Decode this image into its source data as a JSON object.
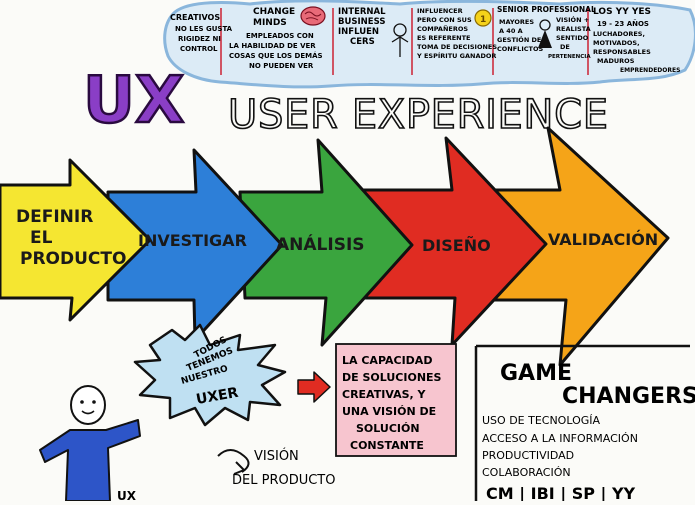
{
  "header_cloud": {
    "segments": [
      {
        "title_lines": [
          "CREATIVOS"
        ],
        "body_lines": [
          "NO LES GUSTA",
          "RIGIDEZ NI",
          "CONTROL"
        ]
      },
      {
        "title_lines": [
          "CHANGE",
          "MINDS"
        ],
        "body_lines": [
          "EMPLEADOS CON",
          "LA HABILIDAD DE VER",
          "COSAS QUE LOS DEMÁS",
          "NO PUEDEN VER"
        ]
      },
      {
        "title_lines": [
          "INTERNAL",
          "BUSINESS",
          "INFLUEN",
          "CERS"
        ],
        "body_lines": [
          "INFLUENCER",
          "PERO CON SUS",
          "COMPAÑEROS",
          "ES REFERENTE",
          "TOMA DE DECISIONES",
          "Y ESPÍRITU GANADOR"
        ]
      },
      {
        "title_lines": [
          "SENIOR PROFESSIONAL"
        ],
        "body_lines": [
          "MAYORES",
          "A 40 A",
          "GESTIÓN DE",
          "CONFLICTOS",
          "VISIÓN +",
          "REALISTA",
          "SENTIDO",
          "DE",
          "PERTENENCIA"
        ]
      },
      {
        "title_lines": [
          "LOS YY YES"
        ],
        "body_lines": [
          "19 - 23 AÑOS",
          "LUCHADORES,",
          "MOTIVADOS,",
          "RESPONSABLES",
          "MADUROS",
          "EMPRENDEDORES"
        ]
      }
    ]
  },
  "title": {
    "logo": "UX",
    "heading": "USER EXPERIENCE"
  },
  "process_arrows": [
    {
      "label": "DEFINIR EL PRODUCTO",
      "lines": [
        "DEFINIR",
        "EL",
        "PRODUCTO"
      ],
      "color": "#f5e631"
    },
    {
      "label": "INVESTIGAR",
      "lines": [
        "INVESTIGAR"
      ],
      "color": "#2d7fd8"
    },
    {
      "label": "ANÁLISIS",
      "lines": [
        "ANÁLISIS"
      ],
      "color": "#3aa53e"
    },
    {
      "label": "DISEÑO",
      "lines": [
        "DISEÑO"
      ],
      "color": "#e02c22"
    },
    {
      "label": "VALIDACIÓN",
      "lines": [
        "VALIDACIÓN"
      ],
      "color": "#f5a418"
    }
  ],
  "bubble": {
    "lines": [
      "TODOS",
      "TENEMOS",
      "NUESTRO"
    ],
    "emphasis": "UXER"
  },
  "capacity_box": {
    "lines": [
      "LA CAPACIDAD",
      "DE SOLUCIONES",
      "CREATIVAS, Y",
      "UNA VISIÓN DE",
      "SOLUCIÓN",
      "CONSTANTE"
    ],
    "color": "#f7c5cf"
  },
  "vision": {
    "lines": [
      "VISIÓN",
      "DEL PRODUCTO"
    ]
  },
  "figure_label": "UX",
  "game_changers": {
    "title_lines": [
      "GAME",
      "CHANGERS"
    ],
    "items": [
      "USO DE TECNOLOGÍA",
      "ACCESO A LA INFORMACIÓN",
      "PRODUCTIVIDAD",
      "COLABORACIÓN"
    ],
    "footer": "CM | IBI | SP | YY"
  },
  "colors": {
    "logo_purple": "#8a3ec6",
    "cloud_blue": "#a8cde8",
    "arrow_red": "#e02c22"
  }
}
